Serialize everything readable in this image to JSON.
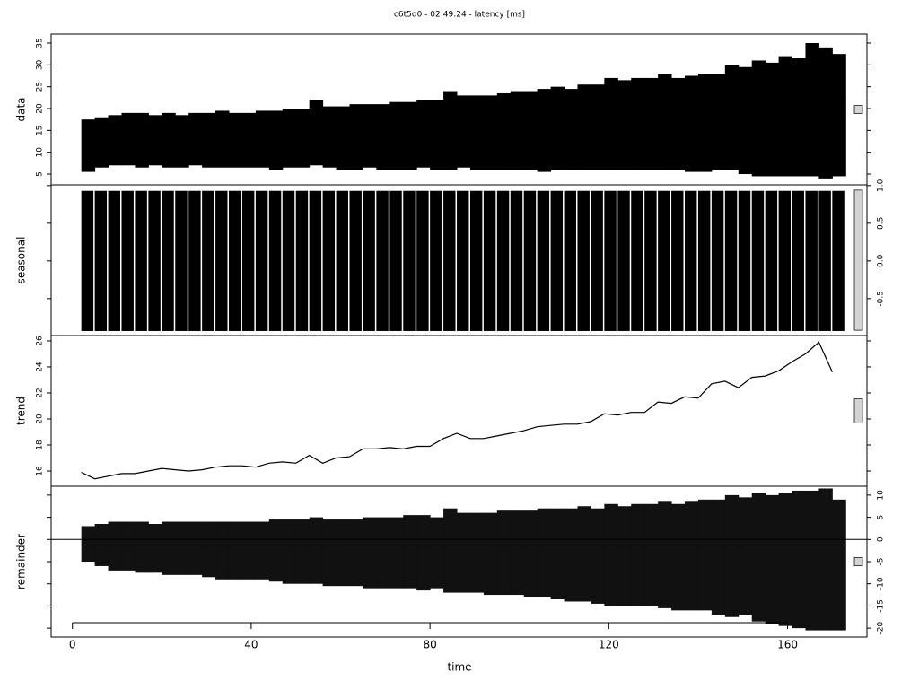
{
  "chart_data": {
    "type": "stl",
    "title": "c6t5d0 - 02:49:24 - latency [ms]",
    "xlabel": "time",
    "xlim": [
      -4.76,
      177.76
    ],
    "xticks": [
      0,
      40,
      80,
      120,
      160
    ],
    "x": [
      2,
      5,
      8,
      11,
      14,
      17,
      20,
      23,
      26,
      29,
      32,
      35,
      38,
      41,
      44,
      47,
      50,
      53,
      56,
      59,
      62,
      65,
      68,
      71,
      74,
      77,
      80,
      83,
      86,
      89,
      92,
      95,
      98,
      101,
      104,
      107,
      110,
      113,
      116,
      119,
      122,
      125,
      128,
      131,
      134,
      137,
      140,
      143,
      146,
      149,
      152,
      155,
      158,
      161,
      164,
      167,
      170
    ],
    "panels": [
      {
        "type": "range",
        "ylabel": "data",
        "tick_side": "left",
        "color": "#000000",
        "gaps": false,
        "ylim": [
          2.54,
          37.05
        ],
        "yticks": [
          5,
          10,
          15,
          20,
          25,
          30,
          35
        ],
        "high": [
          17.5,
          18,
          18.5,
          19,
          19,
          18.5,
          19,
          18.5,
          19,
          19,
          19.5,
          19,
          19,
          19.5,
          19.5,
          20,
          20,
          22,
          20.5,
          20.5,
          21,
          21,
          21,
          21.5,
          21.5,
          22,
          22,
          24,
          23,
          23,
          23,
          23.5,
          24,
          24,
          24.5,
          25,
          24.5,
          25.5,
          25.5,
          27,
          26.5,
          27,
          27,
          28,
          27,
          27.5,
          28,
          28,
          30,
          29.5,
          31,
          30.5,
          32,
          31.5,
          35,
          34,
          32.5
        ],
        "low": [
          5.5,
          6.5,
          7,
          7,
          6.5,
          7,
          6.5,
          6.5,
          7,
          6.5,
          6.5,
          6.5,
          6.5,
          6.5,
          6,
          6.5,
          6.5,
          7,
          6.5,
          6,
          6,
          6.5,
          6,
          6,
          6,
          6.5,
          6,
          6,
          6.5,
          6,
          6,
          6,
          6,
          6,
          5.5,
          6,
          6,
          6,
          6,
          6,
          6,
          6,
          6,
          6,
          6,
          5.5,
          5.5,
          6,
          6,
          5,
          4.5,
          4.5,
          4.5,
          4.5,
          4.5,
          4,
          4.5
        ]
      },
      {
        "type": "range",
        "ylabel": "seasonal",
        "tick_side": "right",
        "color": "#000000",
        "gaps": true,
        "ylim": [
          -0.99,
          1.01
        ],
        "yticks": [
          -0.5,
          {
            "value": 0,
            "label": "0.0"
          },
          0.5,
          {
            "value": 1,
            "label": "1.0"
          }
        ],
        "high": [
          0.93,
          0.93,
          0.93,
          0.93,
          0.93,
          0.93,
          0.93,
          0.93,
          0.93,
          0.93,
          0.93,
          0.93,
          0.93,
          0.93,
          0.93,
          0.93,
          0.93,
          0.93,
          0.93,
          0.93,
          0.93,
          0.93,
          0.93,
          0.93,
          0.93,
          0.93,
          0.93,
          0.93,
          0.93,
          0.93,
          0.93,
          0.93,
          0.93,
          0.93,
          0.93,
          0.93,
          0.93,
          0.93,
          0.93,
          0.93,
          0.93,
          0.93,
          0.93,
          0.93,
          0.93,
          0.93,
          0.93,
          0.93,
          0.93,
          0.93,
          0.93,
          0.93,
          0.93,
          0.93,
          0.93,
          0.93,
          0.93
        ],
        "low": [
          -0.93,
          -0.93,
          -0.93,
          -0.93,
          -0.93,
          -0.93,
          -0.93,
          -0.93,
          -0.93,
          -0.93,
          -0.93,
          -0.93,
          -0.93,
          -0.93,
          -0.93,
          -0.93,
          -0.93,
          -0.93,
          -0.93,
          -0.93,
          -0.93,
          -0.93,
          -0.93,
          -0.93,
          -0.93,
          -0.93,
          -0.93,
          -0.93,
          -0.93,
          -0.93,
          -0.93,
          -0.93,
          -0.93,
          -0.93,
          -0.93,
          -0.93,
          -0.93,
          -0.93,
          -0.93,
          -0.93,
          -0.93,
          -0.93,
          -0.93,
          -0.93,
          -0.93,
          -0.93,
          -0.93,
          -0.93,
          -0.93,
          -0.93,
          -0.93,
          -0.93,
          -0.93,
          -0.93,
          -0.93,
          -0.93,
          -0.93
        ]
      },
      {
        "type": "line",
        "ylabel": "trend",
        "tick_side": "left",
        "color": "#000000",
        "ylim": [
          14.83,
          26.41
        ],
        "yticks": [
          16,
          18,
          20,
          22,
          24,
          26
        ],
        "values": [
          15.9,
          15.4,
          15.6,
          15.8,
          15.8,
          16.0,
          16.2,
          16.1,
          16.0,
          16.1,
          16.3,
          16.4,
          16.4,
          16.3,
          16.6,
          16.7,
          16.6,
          17.2,
          16.6,
          17.0,
          17.1,
          17.7,
          17.7,
          17.8,
          17.7,
          17.9,
          17.9,
          18.5,
          18.9,
          18.5,
          18.5,
          18.7,
          18.9,
          19.1,
          19.4,
          19.5,
          19.6,
          19.6,
          19.8,
          20.4,
          20.3,
          20.5,
          20.5,
          21.3,
          21.2,
          21.7,
          21.6,
          22.7,
          22.9,
          22.4,
          23.2,
          23.3,
          23.7,
          24.4,
          25.0,
          25.9,
          23.6
        ]
      },
      {
        "type": "range",
        "ylabel": "remainder",
        "tick_side": "right",
        "color": "#111111",
        "gaps": false,
        "baseline": 0,
        "ylim": [
          -22,
          12
        ],
        "yticks": [
          10,
          5,
          0,
          -5,
          -10,
          -15,
          -20
        ],
        "high": [
          3,
          3.5,
          4,
          4,
          4,
          3.5,
          4,
          4,
          4,
          4,
          4,
          4,
          4,
          4,
          4.5,
          4.5,
          4.5,
          5,
          4.5,
          4.5,
          4.5,
          5,
          5,
          5,
          5.5,
          5.5,
          5,
          7,
          6,
          6,
          6,
          6.5,
          6.5,
          6.5,
          7,
          7,
          7,
          7.5,
          7,
          8,
          7.5,
          8,
          8,
          8.5,
          8,
          8.5,
          9,
          9,
          10,
          9.5,
          10.5,
          10,
          10.5,
          11,
          11,
          11.5,
          9
        ],
        "low": [
          -5,
          -6,
          -7,
          -7,
          -7.5,
          -7.5,
          -8,
          -8,
          -8,
          -8.5,
          -9,
          -9,
          -9,
          -9,
          -9.5,
          -10,
          -10,
          -10,
          -10.5,
          -10.5,
          -10.5,
          -11,
          -11,
          -11,
          -11,
          -11.5,
          -11,
          -12,
          -12,
          -12,
          -12.5,
          -12.5,
          -12.5,
          -13,
          -13,
          -13.5,
          -14,
          -14,
          -14.5,
          -15,
          -15,
          -15,
          -15,
          -15.5,
          -16,
          -16,
          -16,
          -17,
          -17.5,
          -17,
          -18.5,
          -19,
          -19.5,
          -20,
          -20.5,
          -20.5,
          -20.5
        ]
      }
    ]
  }
}
